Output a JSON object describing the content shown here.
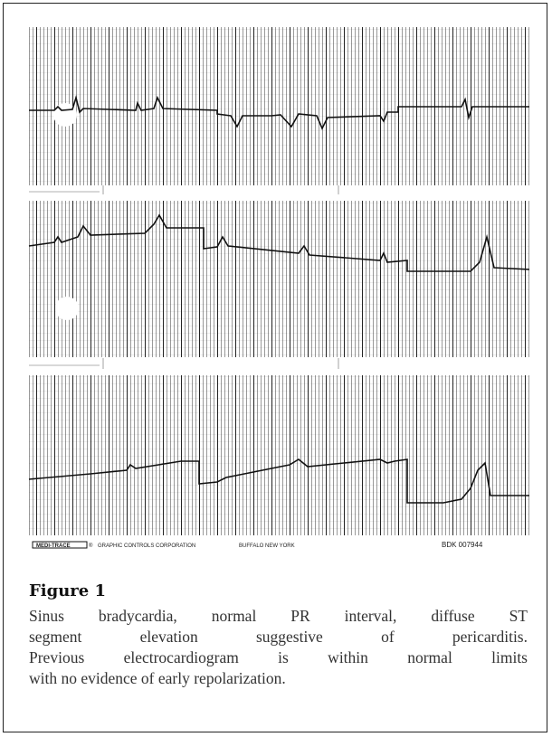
{
  "figure": {
    "footer": {
      "brand": "MEDI-TRACE",
      "registered": "®",
      "company": "GRAPHIC CONTROLS CORPORATION",
      "city": "BUFFALO NEW YORK",
      "code": "BDK 007944"
    },
    "label": "Figure 1",
    "caption_lines": [
      "Sinus bradycardia, normal PR interval, diffuse ST",
      "segment elevation suggestive of pericarditis.",
      "Previous electrocardiogram is within normal limits",
      "with no evidence of early repolarization."
    ]
  }
}
